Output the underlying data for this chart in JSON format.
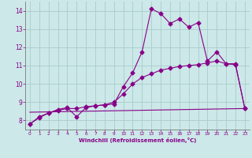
{
  "title": "",
  "xlabel": "Windchill (Refroidissement éolien,°C)",
  "ylabel": "",
  "bg_color": "#cce8e8",
  "grid_color": "#aacccc",
  "line_color": "#880088",
  "xlim": [
    -0.5,
    23.5
  ],
  "ylim": [
    7.5,
    14.5
  ],
  "yticks": [
    8,
    9,
    10,
    11,
    12,
    13,
    14
  ],
  "xticks": [
    0,
    1,
    2,
    3,
    4,
    5,
    6,
    7,
    8,
    9,
    10,
    11,
    12,
    13,
    14,
    15,
    16,
    17,
    18,
    19,
    20,
    21,
    22,
    23
  ],
  "curve1_x": [
    0,
    1,
    2,
    3,
    4,
    5,
    6,
    7,
    8,
    9,
    10,
    11,
    12,
    13,
    14,
    15,
    16,
    17,
    18,
    19,
    20,
    21,
    22,
    23
  ],
  "curve1_y": [
    7.8,
    8.2,
    8.4,
    8.6,
    8.7,
    8.2,
    8.7,
    8.8,
    8.85,
    8.9,
    9.85,
    10.6,
    11.75,
    14.1,
    13.85,
    13.3,
    13.55,
    13.1,
    13.35,
    11.25,
    11.75,
    11.1,
    11.1,
    8.65
  ],
  "curve2_x": [
    0,
    1,
    2,
    3,
    4,
    5,
    6,
    7,
    8,
    9,
    10,
    11,
    12,
    13,
    14,
    15,
    16,
    17,
    18,
    19,
    20,
    21,
    22,
    23
  ],
  "curve2_y": [
    7.8,
    8.15,
    8.4,
    8.55,
    8.65,
    8.65,
    8.75,
    8.8,
    8.85,
    9.0,
    9.45,
    10.0,
    10.35,
    10.55,
    10.75,
    10.85,
    10.95,
    11.0,
    11.05,
    11.15,
    11.25,
    11.1,
    11.05,
    8.65
  ],
  "curve3_x": [
    0,
    23
  ],
  "curve3_y": [
    8.45,
    8.65
  ],
  "marker_size": 2.5,
  "linewidth": 0.8
}
